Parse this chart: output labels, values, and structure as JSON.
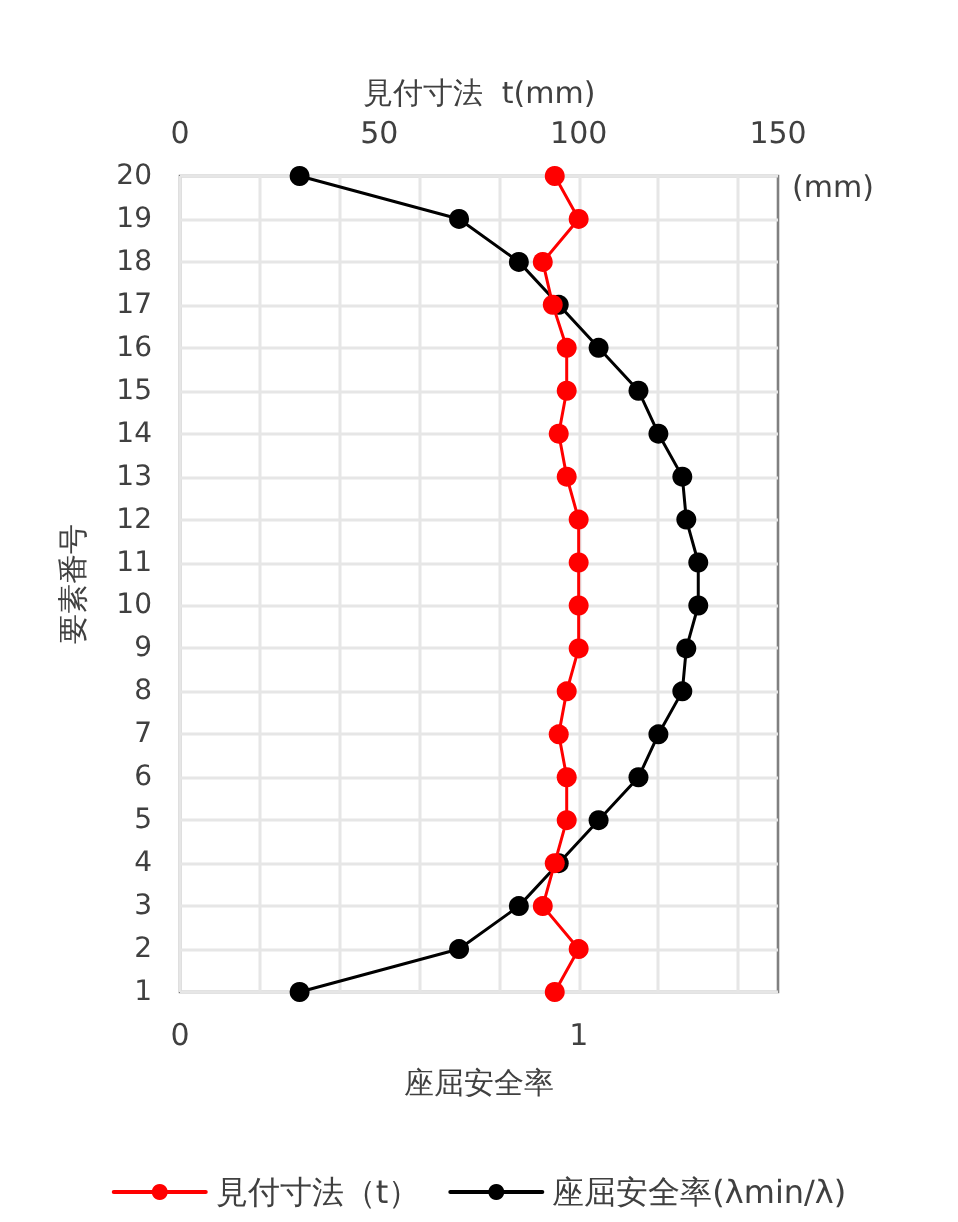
{
  "chart_data": {
    "type": "line",
    "orientation": "horizontal",
    "xlabel": "座屈安全率",
    "x2label": "見付寸法  t(mm)",
    "ylabel": "要素番号",
    "annotations": [
      "(mm)"
    ],
    "categories": [
      "20",
      "19",
      "18",
      "17",
      "16",
      "15",
      "14",
      "13",
      "12",
      "11",
      "10",
      "9",
      "8",
      "7",
      "6",
      "5",
      "4",
      "3",
      "2",
      "1"
    ],
    "series": [
      {
        "name": "見付寸法（t）",
        "color": "#ff0000",
        "axis": "x2",
        "values": [
          94,
          100,
          91,
          93.5,
          97,
          97,
          95,
          97,
          100,
          100,
          100,
          100,
          97,
          95,
          97,
          97,
          94,
          91,
          100,
          94
        ]
      },
      {
        "name": "座屈安全率(λmin/λ)",
        "color": "#000000",
        "values": [
          0.3,
          0.7,
          0.85,
          0.95,
          1.05,
          1.15,
          1.2,
          1.26,
          1.27,
          1.3,
          1.3,
          1.27,
          1.26,
          1.2,
          1.15,
          1.05,
          0.95,
          0.85,
          0.7,
          0.3
        ]
      }
    ],
    "xlim": [
      0,
      1.5
    ],
    "xticks": [
      0,
      {
        "value": 0.2,
        "label": null
      },
      {
        "value": 0.4,
        "label": null
      },
      {
        "value": 0.6,
        "label": null
      },
      {
        "value": 0.8,
        "label": null
      },
      1,
      {
        "value": 1.2,
        "label": null
      },
      {
        "value": 1.4,
        "label": null
      }
    ],
    "x2lim": [
      0,
      150
    ],
    "x2ticks": [
      0,
      50,
      100,
      150
    ],
    "grid": true,
    "legend": "bottom",
    "marker": "circle",
    "line_style": "solid"
  }
}
